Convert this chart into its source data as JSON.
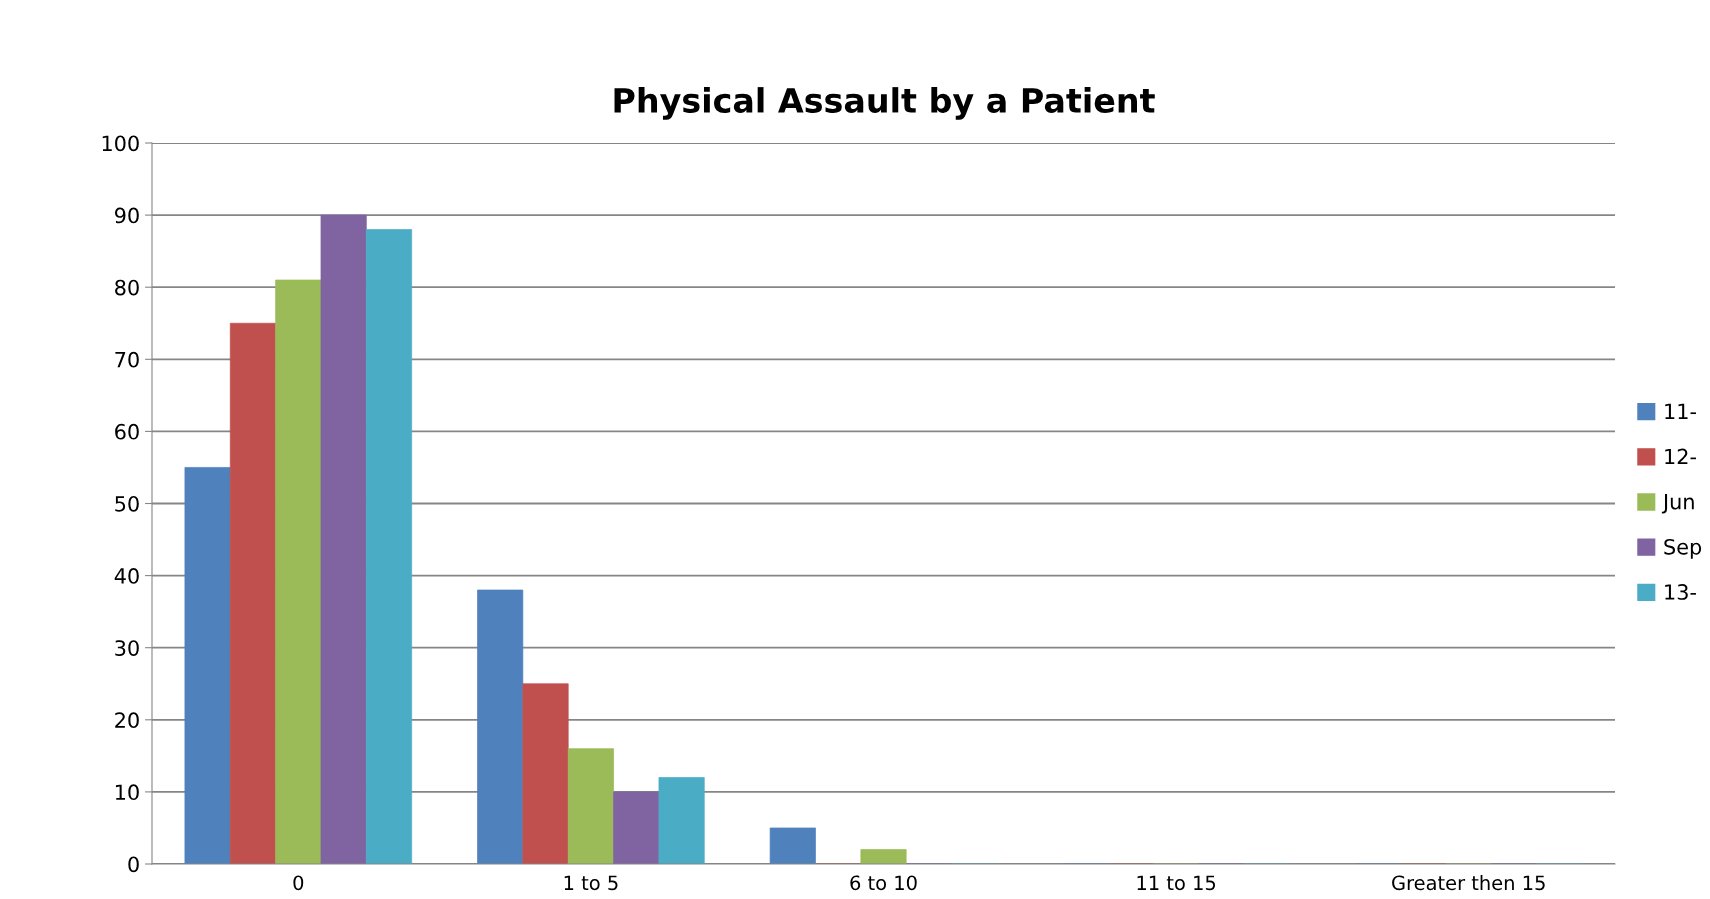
{
  "chart_data": {
    "type": "bar",
    "title": "Physical Assault by a Patient",
    "categories": [
      "0",
      "1 to 5",
      "6 to 10",
      "11 to 15",
      "Greater then 15"
    ],
    "series": [
      {
        "name": "11-",
        "color": "#4f81bd",
        "values": [
          55,
          38,
          5,
          0,
          0
        ]
      },
      {
        "name": "12-",
        "color": "#c0504d",
        "values": [
          75,
          25,
          0,
          0,
          0
        ]
      },
      {
        "name": "Jun",
        "color": "#9bbb59",
        "values": [
          81,
          16,
          2,
          0,
          0
        ]
      },
      {
        "name": "Sep",
        "color": "#8064a2",
        "values": [
          90,
          10,
          0,
          0,
          0
        ]
      },
      {
        "name": "13-",
        "color": "#4bacc6",
        "values": [
          88,
          12,
          0,
          0,
          0
        ]
      }
    ],
    "ylim": [
      0,
      100
    ],
    "yticks": [
      0,
      10,
      20,
      30,
      40,
      50,
      60,
      70,
      80,
      90,
      100
    ],
    "grid": "y",
    "legend": "right"
  }
}
